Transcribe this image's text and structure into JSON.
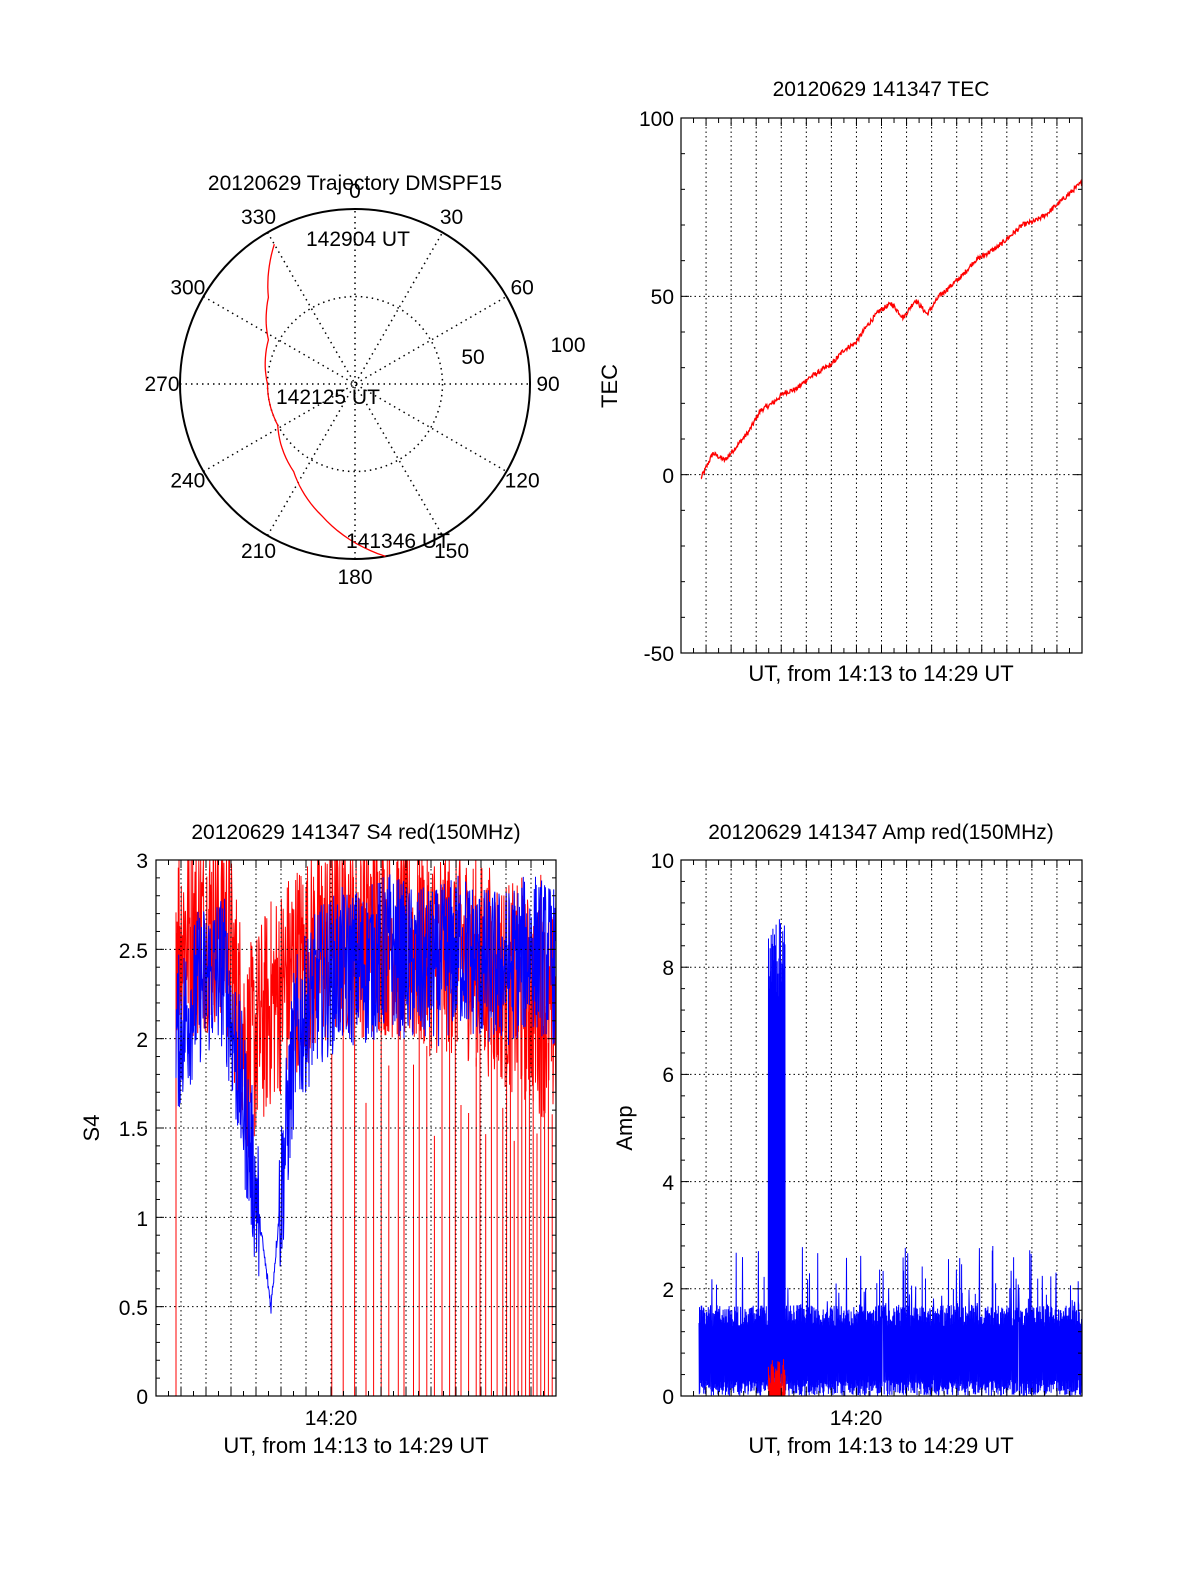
{
  "chart_data": [
    {
      "type": "polar",
      "title": "20120629 Trajectory DMSPF15",
      "azimuth_labels": [
        "0",
        "30",
        "60",
        "90",
        "120",
        "150",
        "180",
        "210",
        "240",
        "270",
        "300",
        "330"
      ],
      "radial_labels": [
        "50",
        "100"
      ],
      "trajectory": {
        "color": "#ff0000",
        "start_label": "141346 UT",
        "mid_label": "142125 UT",
        "end_label": "142904 UT",
        "points": [
          {
            "az": 170,
            "zen": 90
          },
          {
            "az": 194,
            "zen": 70
          },
          {
            "az": 215,
            "zen": 55
          },
          {
            "az": 242,
            "zen": 45
          },
          {
            "az": 270,
            "zen": 45
          },
          {
            "az": 297,
            "zen": 50
          },
          {
            "az": 315,
            "zen": 63
          },
          {
            "az": 330,
            "zen": 83
          }
        ]
      }
    },
    {
      "type": "line",
      "title": "20120629 141347 TEC",
      "xlabel": "UT, from 14:13 to 14:29 UT",
      "ylabel": "TEC",
      "ylim": [
        -50,
        100
      ],
      "yticks": [
        "100",
        "50",
        "0",
        "-50"
      ],
      "grid": true,
      "series": [
        {
          "color": "#ff0000",
          "x": [
            0,
            0.5,
            1,
            1.5,
            2,
            2.5,
            3,
            3.5,
            4,
            4.5,
            5,
            5.5,
            6,
            6.5,
            7,
            7.5,
            8,
            8.5,
            9,
            9.5,
            10,
            10.5,
            11,
            11.5,
            12,
            12.5,
            13,
            13.5,
            14,
            14.5,
            15,
            15.5,
            16
          ],
          "y": [
            -1,
            6,
            4,
            8,
            12,
            18,
            20,
            23,
            24,
            27,
            29,
            31,
            35,
            37,
            42,
            46,
            48,
            44,
            49,
            45,
            50,
            53,
            56,
            60,
            62,
            64,
            67,
            70,
            71,
            73,
            76,
            79,
            82
          ]
        }
      ]
    },
    {
      "type": "line",
      "title": "20120629 141347 S4 red(150MHz)",
      "xlabel": "UT, from 14:13 to 14:29 UT",
      "ylabel": "S4",
      "ylim": [
        0,
        3
      ],
      "yticks": [
        "3",
        "2.5",
        "2",
        "1.5",
        "1",
        "0.5",
        "0"
      ],
      "xtick": "14:20",
      "grid": true,
      "series": [
        {
          "color": "#ff0000",
          "style": "dense noise, spikes 0 to 3",
          "level": [
            2.6,
            2.6,
            2.7,
            1.9,
            2.2,
            2.4,
            2.5,
            2.6,
            2.6,
            2.6,
            2.5,
            2.5,
            2.5,
            2.4,
            2.3,
            2.2,
            2.1
          ]
        },
        {
          "color": "#0000ff",
          "style": "dense noise",
          "level": [
            2.0,
            2.3,
            2.4,
            1.5,
            0.5,
            2.0,
            2.3,
            2.4,
            2.4,
            2.5,
            2.4,
            2.4,
            2.5,
            2.4,
            2.4,
            2.5,
            2.4
          ]
        }
      ]
    },
    {
      "type": "line",
      "title": "20120629 141347 Amp red(150MHz)",
      "xlabel": "UT, from 14:13 to 14:29 UT",
      "ylabel": "Amp",
      "ylim": [
        0,
        10
      ],
      "yticks": [
        "10",
        "8",
        "6",
        "4",
        "2",
        "0"
      ],
      "xtick": "14:20",
      "grid": true,
      "series": [
        {
          "color": "#0000ff",
          "style": "dense noise",
          "baseline": 1.3,
          "peak_max": 8.9,
          "peak_x_range": [
            2.9,
            3.6
          ],
          "spike_max": 2.8
        },
        {
          "color": "#ff0000",
          "style": "small burst",
          "max": 0.7,
          "x_range": [
            2.9,
            3.6
          ]
        }
      ]
    }
  ]
}
